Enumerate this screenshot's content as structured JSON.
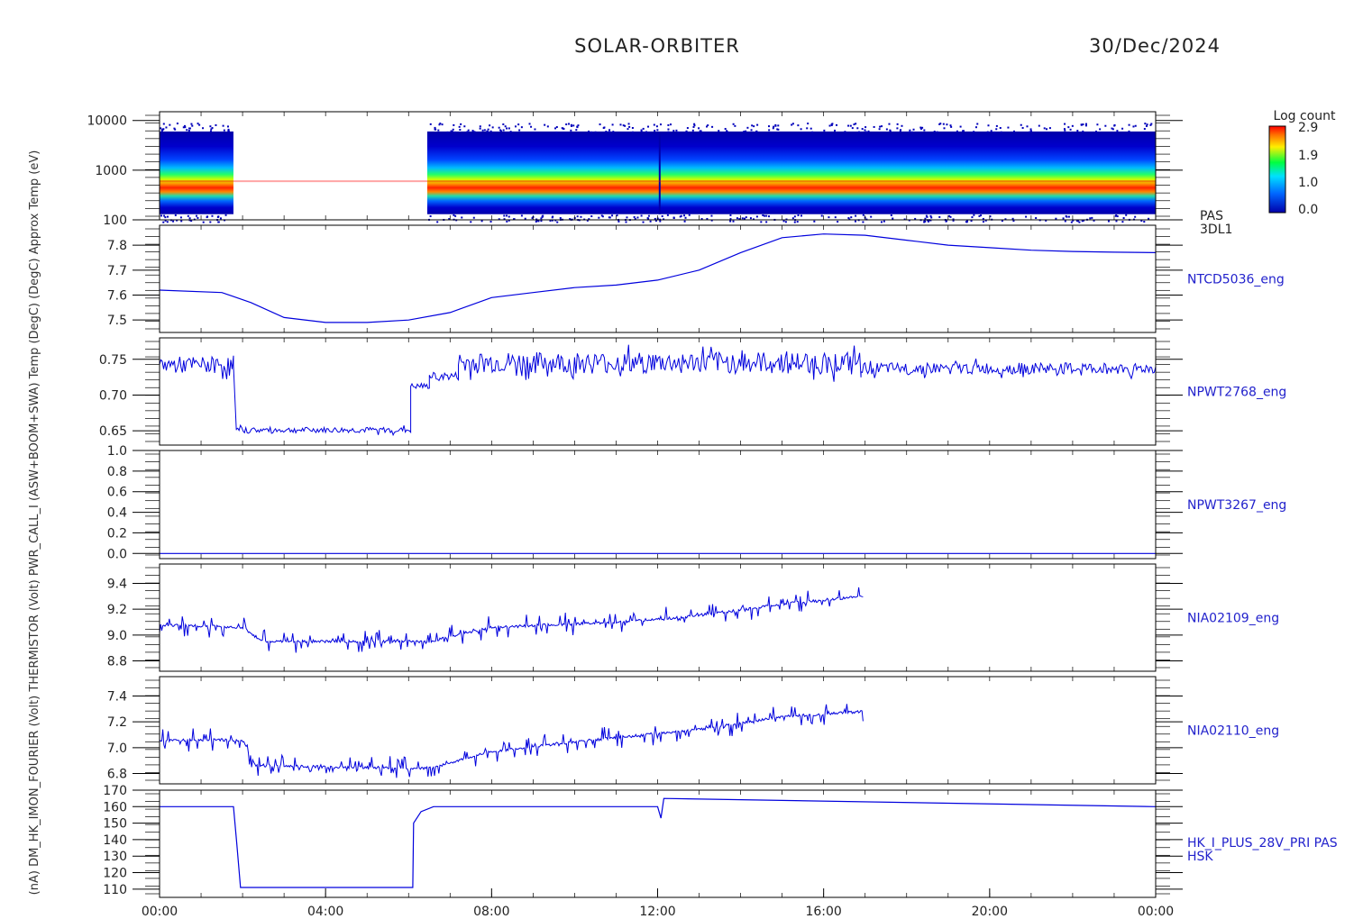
{
  "header": {
    "mission": "SOLAR-ORBITER",
    "date": "30/Dec/2024"
  },
  "colorbar": {
    "title": "Log count",
    "ticks": [
      "2.9",
      "1.9",
      "1.0",
      "0.0"
    ]
  },
  "time_ticks": [
    "00:00",
    "04:00",
    "08:00",
    "12:00",
    "16:00",
    "20:00",
    "00:00"
  ],
  "ylabel_overlap": "(nA) DM_HK_IMON_FOURIER (Volt) THERMISTOR (Volt) PWR_CALL_I (ASW+BOOM+SWA) Temp (DegC) (DegC) Approx Temp (eV)",
  "colors": {
    "series": "#0000dd",
    "frame": "#000000"
  },
  "chart_data": [
    {
      "type": "heatmap",
      "side_label": [
        "PAS",
        "3DL1"
      ],
      "y_ticks": [
        "10000",
        "1000",
        "100"
      ],
      "yscale": "log",
      "ylim": [
        100,
        15000
      ],
      "x_range_hours": [
        0,
        24
      ],
      "data_gaps_hours": [
        [
          1.78,
          6.45
        ]
      ],
      "peak_energy_eV": 600,
      "colorbar_range": [
        0.0,
        2.9
      ]
    },
    {
      "type": "line",
      "side_label": "NTCD5036_eng",
      "y_ticks": [
        "7.8",
        "7.7",
        "7.6",
        "7.5"
      ],
      "ylim": [
        7.45,
        7.88
      ],
      "x": [
        0,
        1.5,
        2.2,
        3,
        4,
        5,
        6,
        7,
        8,
        9,
        10,
        11,
        12,
        13,
        14,
        15,
        16,
        17,
        18,
        19,
        20,
        21,
        22,
        23,
        24
      ],
      "values": [
        7.62,
        7.61,
        7.57,
        7.51,
        7.49,
        7.49,
        7.5,
        7.53,
        7.59,
        7.61,
        7.63,
        7.64,
        7.66,
        7.7,
        7.77,
        7.83,
        7.845,
        7.84,
        7.82,
        7.8,
        7.79,
        7.78,
        7.775,
        7.772,
        7.77
      ]
    },
    {
      "type": "line",
      "side_label": "NPWT2768_eng",
      "y_ticks": [
        "0.75",
        "0.70",
        "0.65"
      ],
      "ylim": [
        0.63,
        0.78
      ],
      "segments": [
        {
          "x": [
            0,
            1.78
          ],
          "level": 0.742,
          "noise": 0.012
        },
        {
          "x": [
            1.78,
            1.85
          ],
          "from": 0.742,
          "to": 0.651
        },
        {
          "x": [
            1.85,
            6.05
          ],
          "level": 0.651,
          "noise": 0.004
        },
        {
          "x": [
            6.05,
            6.5
          ],
          "level": 0.712,
          "noise": 0.004
        },
        {
          "x": [
            6.5,
            7.2
          ],
          "level": 0.726,
          "noise": 0.006
        },
        {
          "x": [
            7.2,
            16.9
          ],
          "level": 0.745,
          "noise": 0.015
        },
        {
          "x": [
            16.9,
            24
          ],
          "level": 0.737,
          "noise": 0.008
        }
      ]
    },
    {
      "type": "line",
      "side_label": "NPWT3267_eng",
      "y_ticks": [
        "1.0",
        "0.8",
        "0.6",
        "0.4",
        "0.2",
        "0.0"
      ],
      "ylim": [
        -0.05,
        1.0
      ],
      "x": [
        0,
        24
      ],
      "values": [
        0.0,
        0.0
      ]
    },
    {
      "type": "line",
      "side_label": "NIA02109_eng",
      "y_ticks": [
        "9.4",
        "9.2",
        "9.0",
        "8.8"
      ],
      "ylim": [
        8.72,
        9.55
      ],
      "x_end": 16.95,
      "x": [
        0,
        2,
        2.5,
        6.5,
        8,
        11,
        13,
        15,
        16.9
      ],
      "values": [
        9.08,
        9.06,
        8.95,
        8.95,
        9.06,
        9.1,
        9.15,
        9.24,
        9.3
      ],
      "noise": 0.09
    },
    {
      "type": "line",
      "side_label": "NIA02110_eng",
      "y_ticks": [
        "7.4",
        "7.2",
        "7.0",
        "6.8"
      ],
      "ylim": [
        6.72,
        7.55
      ],
      "x_end": 16.95,
      "x": [
        0,
        2,
        2.3,
        6.5,
        8,
        11,
        13,
        15,
        16.9
      ],
      "values": [
        7.06,
        7.06,
        6.86,
        6.84,
        6.97,
        7.08,
        7.14,
        7.24,
        7.28
      ],
      "noise": 0.09
    },
    {
      "type": "line",
      "side_label": [
        "HK_I_PLUS_28V_PRI PAS",
        "HSK"
      ],
      "y_ticks": [
        "170",
        "160",
        "150",
        "140",
        "130",
        "120",
        "110"
      ],
      "ylim": [
        105,
        170
      ],
      "x": [
        0,
        1.78,
        1.86,
        1.95,
        6.1,
        6.12,
        6.3,
        6.6,
        12.0,
        12.08,
        12.15,
        24
      ],
      "values": [
        160,
        160,
        138,
        111,
        111,
        150,
        157,
        160,
        160,
        153,
        165,
        160
      ]
    }
  ]
}
